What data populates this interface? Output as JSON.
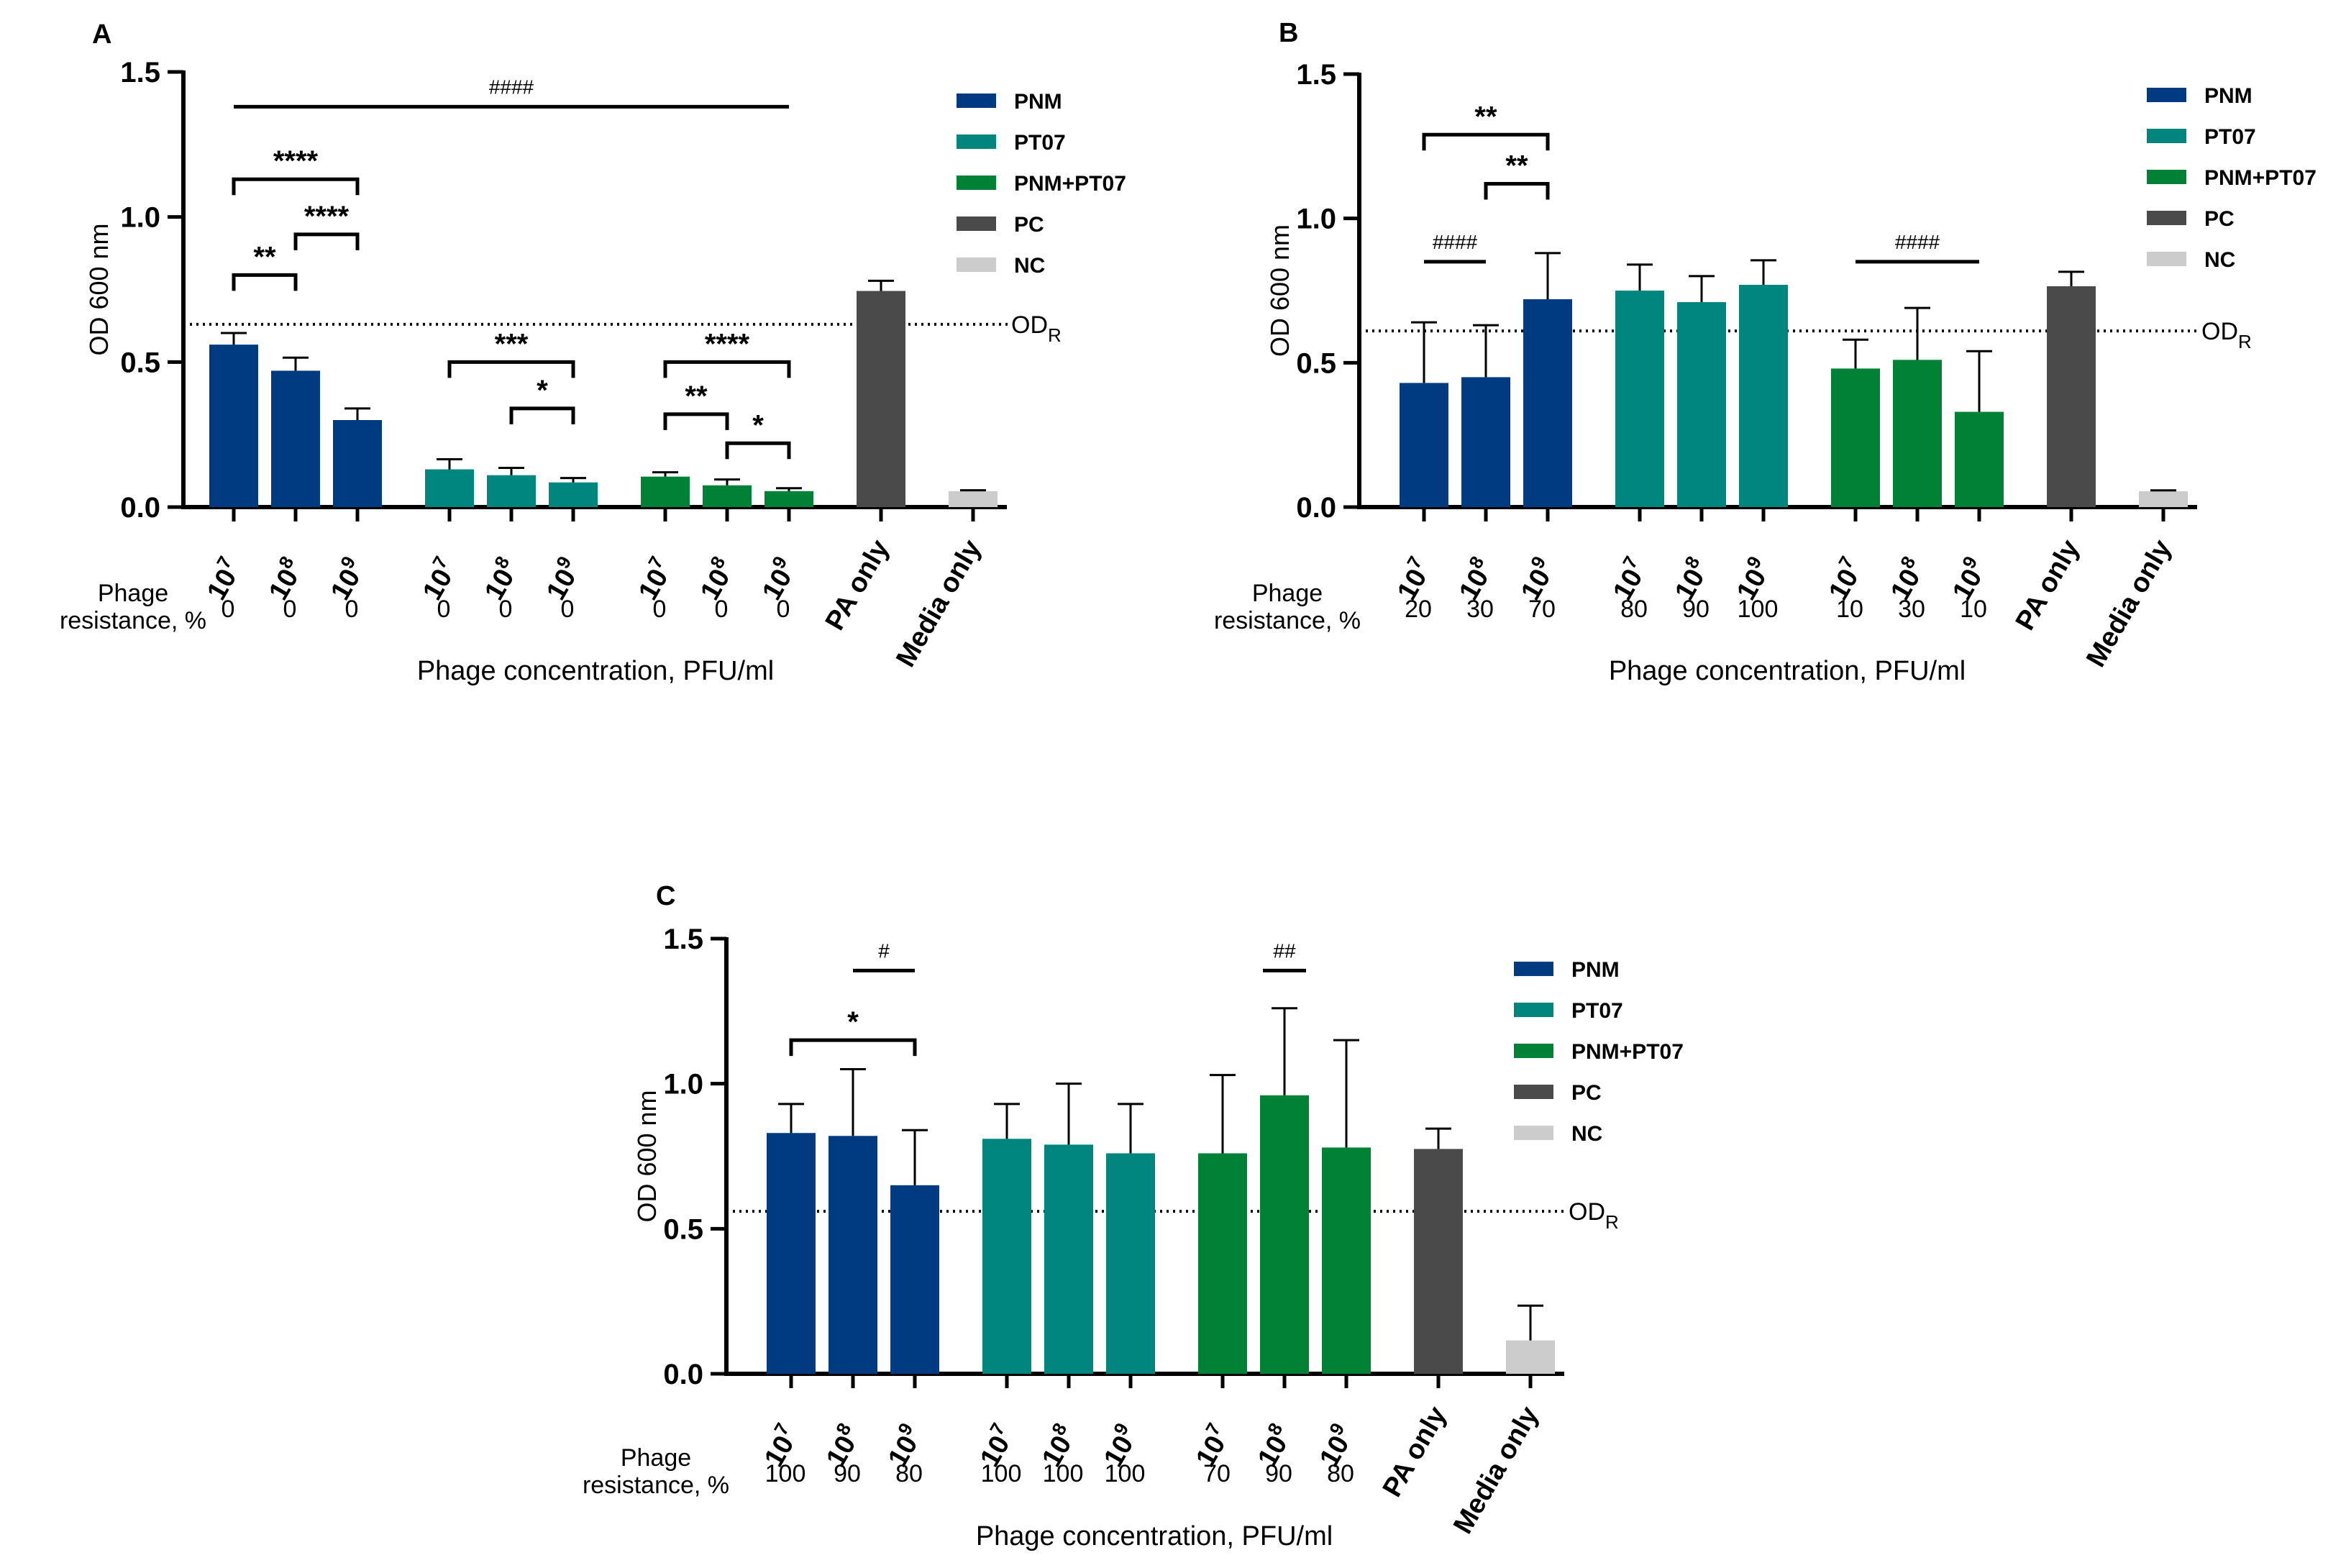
{
  "colors": {
    "PNM": "#003a80",
    "PT07": "#00857f",
    "PNM+PT07": "#008236",
    "PC": "#4a4a4a",
    "NC": "#cccccc"
  },
  "chart_data": [
    {
      "panel": "A",
      "type": "bar",
      "ylabel": "OD 600 nm",
      "xlabel": "Phage concentration, PFU/ml",
      "ylim": [
        0,
        1.5
      ],
      "yticks": [
        "0.0",
        "0.5",
        "1.0",
        "1.5"
      ],
      "grid": false,
      "legend_position": "top-right",
      "legend": [
        "PNM",
        "PT07",
        "PNM+PT07",
        "PC",
        "NC"
      ],
      "resistance_label": [
        "Phage",
        "resistance, %"
      ],
      "threshold": {
        "value": 0.63,
        "label_main": "OD",
        "label_sub": "R"
      },
      "bars": [
        {
          "group": "PNM",
          "cat": "10^7",
          "value": 0.56,
          "err": 0.04,
          "resistance": "0"
        },
        {
          "group": "PNM",
          "cat": "10^8",
          "value": 0.47,
          "err": 0.045,
          "resistance": "0"
        },
        {
          "group": "PNM",
          "cat": "10^9",
          "value": 0.3,
          "err": 0.04,
          "resistance": "0"
        },
        {
          "group": "PT07",
          "cat": "10^7",
          "value": 0.13,
          "err": 0.035,
          "resistance": "0"
        },
        {
          "group": "PT07",
          "cat": "10^8",
          "value": 0.11,
          "err": 0.025,
          "resistance": "0"
        },
        {
          "group": "PT07",
          "cat": "10^9",
          "value": 0.085,
          "err": 0.015,
          "resistance": "0"
        },
        {
          "group": "PNM+PT07",
          "cat": "10^7",
          "value": 0.105,
          "err": 0.015,
          "resistance": "0"
        },
        {
          "group": "PNM+PT07",
          "cat": "10^8",
          "value": 0.075,
          "err": 0.02,
          "resistance": "0"
        },
        {
          "group": "PNM+PT07",
          "cat": "10^9",
          "value": 0.055,
          "err": 0.01,
          "resistance": "0"
        },
        {
          "group": "PC",
          "cat": "PA only",
          "value": 0.745,
          "err": 0.035,
          "resistance": ""
        },
        {
          "group": "NC",
          "cat": "Media only",
          "value": 0.055,
          "err": 0.003,
          "resistance": ""
        }
      ],
      "annotations": [
        {
          "type": "line",
          "from": 0,
          "to": 8,
          "y": 1.38,
          "label": "####"
        },
        {
          "type": "bracket",
          "from": 0,
          "to": 2,
          "y": 1.13,
          "label": "****"
        },
        {
          "type": "bracket",
          "from": 1,
          "to": 2,
          "y": 0.94,
          "label": "****"
        },
        {
          "type": "bracket",
          "from": 0,
          "to": 1,
          "y": 0.8,
          "label": "**"
        },
        {
          "type": "bracket",
          "from": 3,
          "to": 5,
          "y": 0.5,
          "label": "***"
        },
        {
          "type": "bracket",
          "from": 4,
          "to": 5,
          "y": 0.34,
          "label": "*"
        },
        {
          "type": "bracket",
          "from": 6,
          "to": 8,
          "y": 0.5,
          "label": "****"
        },
        {
          "type": "bracket",
          "from": 6,
          "to": 7,
          "y": 0.32,
          "label": "**"
        },
        {
          "type": "bracket",
          "from": 7,
          "to": 8,
          "y": 0.22,
          "label": "*"
        }
      ]
    },
    {
      "panel": "B",
      "type": "bar",
      "ylabel": "OD 600 nm",
      "xlabel": "Phage concentration, PFU/ml",
      "ylim": [
        0,
        1.5
      ],
      "yticks": [
        "0.0",
        "0.5",
        "1.0",
        "1.5"
      ],
      "grid": false,
      "legend_position": "top-right",
      "legend": [
        "PNM",
        "PT07",
        "PNM+PT07",
        "PC",
        "NC"
      ],
      "resistance_label": [
        "Phage",
        "resistance, %"
      ],
      "threshold": {
        "value": 0.61,
        "label_main": "OD",
        "label_sub": "R"
      },
      "bars": [
        {
          "group": "PNM",
          "cat": "10^7",
          "value": 0.43,
          "err": 0.21,
          "resistance": "20"
        },
        {
          "group": "PNM",
          "cat": "10^8",
          "value": 0.45,
          "err": 0.18,
          "resistance": "30"
        },
        {
          "group": "PNM",
          "cat": "10^9",
          "value": 0.72,
          "err": 0.16,
          "resistance": "70"
        },
        {
          "group": "PT07",
          "cat": "10^7",
          "value": 0.75,
          "err": 0.09,
          "resistance": "80"
        },
        {
          "group": "PT07",
          "cat": "10^8",
          "value": 0.71,
          "err": 0.09,
          "resistance": "90"
        },
        {
          "group": "PT07",
          "cat": "10^9",
          "value": 0.77,
          "err": 0.085,
          "resistance": "100"
        },
        {
          "group": "PNM+PT07",
          "cat": "10^7",
          "value": 0.48,
          "err": 0.1,
          "resistance": "10"
        },
        {
          "group": "PNM+PT07",
          "cat": "10^8",
          "value": 0.51,
          "err": 0.18,
          "resistance": "30"
        },
        {
          "group": "PNM+PT07",
          "cat": "10^9",
          "value": 0.33,
          "err": 0.21,
          "resistance": "10"
        },
        {
          "group": "PC",
          "cat": "PA only",
          "value": 0.765,
          "err": 0.05,
          "resistance": ""
        },
        {
          "group": "NC",
          "cat": "Media only",
          "value": 0.055,
          "err": 0.003,
          "resistance": ""
        }
      ],
      "annotations": [
        {
          "type": "bracket",
          "from": 0,
          "to": 2,
          "y": 1.29,
          "label": "**"
        },
        {
          "type": "bracket",
          "from": 1,
          "to": 2,
          "y": 1.12,
          "label": "**"
        },
        {
          "type": "line",
          "from": 0,
          "to": 1,
          "y": 0.85,
          "label": "####"
        },
        {
          "type": "line",
          "from": 6,
          "to": 8,
          "y": 0.85,
          "label": "####"
        }
      ]
    },
    {
      "panel": "C",
      "type": "bar",
      "ylabel": "OD 600 nm",
      "xlabel": "Phage concentration, PFU/ml",
      "ylim": [
        0,
        1.5
      ],
      "yticks": [
        "0.0",
        "0.5",
        "1.0",
        "1.5"
      ],
      "grid": false,
      "legend_position": "top-right",
      "legend": [
        "PNM",
        "PT07",
        "PNM+PT07",
        "PC",
        "NC"
      ],
      "resistance_label": [
        "Phage",
        "resistance, %"
      ],
      "threshold": {
        "value": 0.56,
        "label_main": "OD",
        "label_sub": "R"
      },
      "bars": [
        {
          "group": "PNM",
          "cat": "10^7",
          "value": 0.83,
          "err": 0.1,
          "resistance": "100"
        },
        {
          "group": "PNM",
          "cat": "10^8",
          "value": 0.82,
          "err": 0.23,
          "resistance": "90"
        },
        {
          "group": "PNM",
          "cat": "10^9",
          "value": 0.65,
          "err": 0.19,
          "resistance": "80"
        },
        {
          "group": "PT07",
          "cat": "10^7",
          "value": 0.81,
          "err": 0.12,
          "resistance": "100"
        },
        {
          "group": "PT07",
          "cat": "10^8",
          "value": 0.79,
          "err": 0.21,
          "resistance": "100"
        },
        {
          "group": "PT07",
          "cat": "10^9",
          "value": 0.76,
          "err": 0.17,
          "resistance": "100"
        },
        {
          "group": "PNM+PT07",
          "cat": "10^7",
          "value": 0.76,
          "err": 0.27,
          "resistance": "70"
        },
        {
          "group": "PNM+PT07",
          "cat": "10^8",
          "value": 0.96,
          "err": 0.3,
          "resistance": "90"
        },
        {
          "group": "PNM+PT07",
          "cat": "10^9",
          "value": 0.78,
          "err": 0.37,
          "resistance": "80"
        },
        {
          "group": "PC",
          "cat": "PA only",
          "value": 0.775,
          "err": 0.07,
          "resistance": ""
        },
        {
          "group": "NC",
          "cat": "Media only",
          "value": 0.115,
          "err": 0.12,
          "resistance": ""
        }
      ],
      "annotations": [
        {
          "type": "line",
          "from": 1,
          "to": 2,
          "y": 1.39,
          "label": "#"
        },
        {
          "type": "bracket",
          "from": 0,
          "to": 2,
          "y": 1.15,
          "label": "*"
        },
        {
          "type": "line",
          "from": 7,
          "to": 7,
          "y": 1.39,
          "label": "##"
        }
      ]
    }
  ]
}
